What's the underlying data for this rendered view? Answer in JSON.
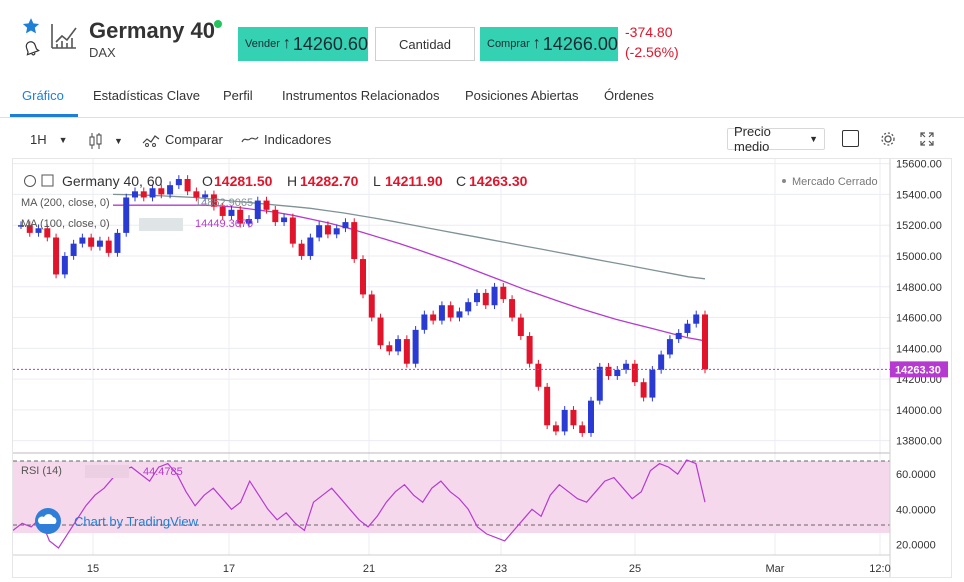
{
  "header": {
    "title": "Germany 40",
    "subtitle": "DAX",
    "sell_label": "Vender",
    "sell_price": "14260.60",
    "quantity_label": "Cantidad",
    "buy_label": "Comprar",
    "buy_price": "14266.00",
    "change_abs": "-374.80",
    "change_pct": "(-2.56%)"
  },
  "tabs": [
    {
      "label": "Gráfico"
    },
    {
      "label": "Estadísticas Clave"
    },
    {
      "label": "Perfil"
    },
    {
      "label": "Instrumentos Relacionados"
    },
    {
      "label": "Posiciones Abiertas"
    },
    {
      "label": "Órdenes"
    }
  ],
  "toolbar": {
    "interval": "1H",
    "compare_label": "Comparar",
    "indicators_label": "Indicadores",
    "price_type": "Precio medio"
  },
  "legend": {
    "symbol": "Germany 40, 60",
    "o_label": "O",
    "o_value": "14281.50",
    "h_label": "H",
    "h_value": "14282.70",
    "l_label": "L",
    "l_value": "14211.90",
    "c_label": "C",
    "c_value": "14263.30",
    "ma200_label": "MA (200, close, 0)",
    "ma200_value": "14852.9065",
    "ma100_label": "MA (100, close, 0)",
    "ma100_value": "14449.3670",
    "market_status": "Mercado Cerrado",
    "rsi_label": "RSI (14)",
    "rsi_value": "44.4785",
    "branding": "Chart by TradingView"
  },
  "colors": {
    "accent": "#1e7fd6",
    "button": "#34d1b3",
    "down": "#e0152b",
    "ma200": "#7f9295",
    "ma100": "#b53bd0",
    "rsi_band": "#f6d8ec"
  },
  "chart_data": {
    "type": "line",
    "price_axis": [
      "15600.00",
      "15400.00",
      "15200.00",
      "15000.00",
      "14800.00",
      "14600.00",
      "14400.00",
      "14200.00",
      "14000.00",
      "13800.00"
    ],
    "current_price_label": "14263.30",
    "rsi_axis": [
      "60.0000",
      "40.0000",
      "20.0000"
    ],
    "x_ticks": [
      "15",
      "17",
      "21",
      "23",
      "25",
      "Mar",
      "12:0"
    ],
    "ylim": [
      13720,
      15630
    ],
    "rsi_ylim": [
      14,
      72
    ],
    "price_close": [
      15200,
      15150,
      15180,
      15120,
      14880,
      15000,
      15080,
      15120,
      15060,
      15100,
      15020,
      15150,
      15380,
      15420,
      15380,
      15440,
      15400,
      15460,
      15500,
      15420,
      15380,
      15400,
      15320,
      15260,
      15300,
      15210,
      15240,
      15360,
      15300,
      15220,
      15250,
      15080,
      15000,
      15120,
      15200,
      15140,
      15180,
      15220,
      14980,
      14750,
      14600,
      14420,
      14380,
      14460,
      14300,
      14520,
      14620,
      14580,
      14680,
      14600,
      14640,
      14700,
      14760,
      14680,
      14800,
      14720,
      14600,
      14480,
      14300,
      14150,
      13900,
      13860,
      14000,
      13900,
      13850,
      14060,
      14280,
      14220,
      14260,
      14300,
      14180,
      14080,
      14260,
      14360,
      14460,
      14500,
      14560,
      14620,
      14263
    ],
    "ma200": [
      15400,
      15398,
      15395,
      15390,
      15385,
      15380,
      15370,
      15360,
      15350,
      15340,
      15330,
      15320,
      15310,
      15295,
      15280,
      15262,
      15244,
      15225,
      15205,
      15185,
      15165,
      15145,
      15125,
      15105,
      15085,
      15065,
      15045,
      15025,
      15005,
      14985,
      14965,
      14945,
      14925,
      14905,
      14885,
      14865,
      14852
    ],
    "ma100": [
      15330,
      15330,
      15330,
      15330,
      15330,
      15330,
      15325,
      15315,
      15300,
      15285,
      15265,
      15240,
      15215,
      15185,
      15150,
      15115,
      15080,
      15040,
      15000,
      14960,
      14915,
      14870,
      14825,
      14780,
      14740,
      14700,
      14660,
      14625,
      14590,
      14560,
      14530,
      14500,
      14470,
      14449
    ],
    "rsi": [
      28,
      32,
      30,
      35,
      22,
      18,
      26,
      34,
      42,
      48,
      52,
      58,
      62,
      64,
      60,
      56,
      64,
      66,
      60,
      50,
      42,
      48,
      52,
      46,
      40,
      44,
      56,
      48,
      40,
      34,
      38,
      32,
      28,
      44,
      48,
      52,
      46,
      40,
      34,
      30,
      36,
      44,
      50,
      54,
      48,
      44,
      52,
      56,
      50,
      46,
      40,
      30,
      26,
      24,
      22,
      28,
      34,
      40,
      36,
      48,
      54,
      50,
      46,
      44,
      50,
      56,
      58,
      52,
      46,
      50,
      62,
      66,
      64,
      60,
      68,
      66,
      44
    ]
  }
}
